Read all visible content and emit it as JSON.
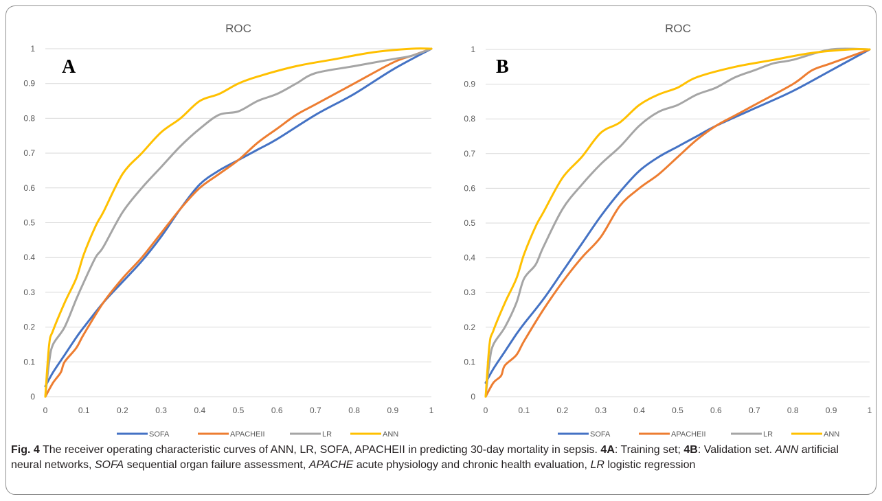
{
  "charts_meta": {
    "axis_color": "#d9d9d9",
    "grid_color": "#d9d9d9",
    "tick_color": "#595959"
  },
  "chart_data": [
    {
      "type": "line",
      "title": "ROC",
      "panel_label": "A",
      "xlabel": "",
      "ylabel": "",
      "xlim": [
        0,
        1
      ],
      "ylim": [
        0,
        1
      ],
      "xticks": [
        "0",
        "0.1",
        "0.2",
        "0.3",
        "0.4",
        "0.5",
        "0.6",
        "0.7",
        "0.8",
        "0.9",
        "1"
      ],
      "yticks": [
        "0",
        "0.1",
        "0.2",
        "0.3",
        "0.4",
        "0.5",
        "0.6",
        "0.7",
        "0.8",
        "0.9",
        "1"
      ],
      "grid": "horizontal",
      "legend_position": "bottom",
      "series": [
        {
          "name": "SOFA",
          "color": "#4472c4",
          "x": [
            0,
            0.02,
            0.05,
            0.08,
            0.1,
            0.15,
            0.2,
            0.25,
            0.3,
            0.35,
            0.4,
            0.45,
            0.5,
            0.55,
            0.6,
            0.7,
            0.8,
            0.9,
            1.0
          ],
          "y": [
            0.03,
            0.07,
            0.12,
            0.17,
            0.2,
            0.27,
            0.33,
            0.39,
            0.46,
            0.54,
            0.61,
            0.65,
            0.68,
            0.71,
            0.74,
            0.81,
            0.87,
            0.94,
            1.0
          ]
        },
        {
          "name": "APACHEII",
          "color": "#ed7d31",
          "x": [
            0,
            0.02,
            0.04,
            0.05,
            0.08,
            0.1,
            0.15,
            0.2,
            0.25,
            0.3,
            0.35,
            0.4,
            0.45,
            0.5,
            0.55,
            0.6,
            0.65,
            0.7,
            0.8,
            0.9,
            0.95,
            1.0
          ],
          "y": [
            0,
            0.04,
            0.07,
            0.1,
            0.14,
            0.18,
            0.27,
            0.34,
            0.4,
            0.47,
            0.54,
            0.6,
            0.64,
            0.68,
            0.73,
            0.77,
            0.81,
            0.84,
            0.9,
            0.96,
            0.98,
            1.0
          ]
        },
        {
          "name": "LR",
          "color": "#a5a5a5",
          "x": [
            0,
            0.01,
            0.02,
            0.05,
            0.08,
            0.1,
            0.13,
            0.15,
            0.2,
            0.25,
            0.3,
            0.35,
            0.4,
            0.45,
            0.5,
            0.55,
            0.6,
            0.65,
            0.7,
            0.8,
            0.9,
            0.95,
            1.0
          ],
          "y": [
            0,
            0.1,
            0.15,
            0.2,
            0.28,
            0.33,
            0.4,
            0.43,
            0.53,
            0.6,
            0.66,
            0.72,
            0.77,
            0.81,
            0.82,
            0.85,
            0.87,
            0.9,
            0.93,
            0.95,
            0.97,
            0.98,
            1.0
          ]
        },
        {
          "name": "ANN",
          "color": "#ffc000",
          "x": [
            0,
            0.01,
            0.02,
            0.05,
            0.08,
            0.1,
            0.13,
            0.15,
            0.2,
            0.25,
            0.3,
            0.35,
            0.4,
            0.45,
            0.5,
            0.55,
            0.65,
            0.75,
            0.85,
            0.95,
            1.0
          ],
          "y": [
            0,
            0.15,
            0.19,
            0.27,
            0.34,
            0.41,
            0.49,
            0.53,
            0.64,
            0.7,
            0.76,
            0.8,
            0.85,
            0.87,
            0.9,
            0.92,
            0.95,
            0.97,
            0.99,
            1.0,
            1.0
          ]
        }
      ]
    },
    {
      "type": "line",
      "title": "ROC",
      "panel_label": "B",
      "xlabel": "",
      "ylabel": "",
      "xlim": [
        0,
        1
      ],
      "ylim": [
        0,
        1
      ],
      "xticks": [
        "0",
        "0.1",
        "0.2",
        "0.3",
        "0.4",
        "0.5",
        "0.6",
        "0.7",
        "0.8",
        "0.9",
        "1"
      ],
      "yticks": [
        "0",
        "0.1",
        "0.2",
        "0.3",
        "0.4",
        "0.5",
        "0.6",
        "0.7",
        "0.8",
        "0.9",
        "1"
      ],
      "grid": "horizontal",
      "legend_position": "bottom",
      "series": [
        {
          "name": "SOFA",
          "color": "#4472c4",
          "x": [
            0,
            0.02,
            0.05,
            0.08,
            0.1,
            0.15,
            0.2,
            0.25,
            0.3,
            0.35,
            0.4,
            0.45,
            0.5,
            0.55,
            0.6,
            0.7,
            0.8,
            0.9,
            1.0
          ],
          "y": [
            0.04,
            0.08,
            0.13,
            0.18,
            0.21,
            0.28,
            0.36,
            0.44,
            0.52,
            0.59,
            0.65,
            0.69,
            0.72,
            0.75,
            0.78,
            0.83,
            0.88,
            0.94,
            1.0
          ]
        },
        {
          "name": "APACHEII",
          "color": "#ed7d31",
          "x": [
            0,
            0.02,
            0.04,
            0.05,
            0.08,
            0.1,
            0.15,
            0.2,
            0.25,
            0.3,
            0.35,
            0.4,
            0.45,
            0.5,
            0.55,
            0.6,
            0.65,
            0.7,
            0.8,
            0.85,
            0.9,
            1.0
          ],
          "y": [
            0,
            0.04,
            0.06,
            0.09,
            0.12,
            0.16,
            0.25,
            0.33,
            0.4,
            0.46,
            0.55,
            0.6,
            0.64,
            0.69,
            0.74,
            0.78,
            0.81,
            0.84,
            0.9,
            0.94,
            0.96,
            1.0
          ]
        },
        {
          "name": "LR",
          "color": "#a5a5a5",
          "x": [
            0,
            0.01,
            0.02,
            0.05,
            0.08,
            0.1,
            0.13,
            0.15,
            0.2,
            0.25,
            0.3,
            0.35,
            0.4,
            0.45,
            0.5,
            0.55,
            0.6,
            0.65,
            0.7,
            0.75,
            0.8,
            0.9,
            1.0
          ],
          "y": [
            0,
            0.1,
            0.15,
            0.2,
            0.27,
            0.34,
            0.38,
            0.43,
            0.54,
            0.61,
            0.67,
            0.72,
            0.78,
            0.82,
            0.84,
            0.87,
            0.89,
            0.92,
            0.94,
            0.96,
            0.97,
            1.0,
            1.0
          ]
        },
        {
          "name": "ANN",
          "color": "#ffc000",
          "x": [
            0,
            0.01,
            0.02,
            0.05,
            0.08,
            0.1,
            0.13,
            0.15,
            0.2,
            0.25,
            0.3,
            0.35,
            0.4,
            0.45,
            0.5,
            0.55,
            0.65,
            0.75,
            0.85,
            0.95,
            1.0
          ],
          "y": [
            0,
            0.15,
            0.19,
            0.27,
            0.34,
            0.41,
            0.49,
            0.53,
            0.63,
            0.69,
            0.76,
            0.79,
            0.84,
            0.87,
            0.89,
            0.92,
            0.95,
            0.97,
            0.99,
            1.0,
            1.0
          ]
        }
      ]
    }
  ],
  "caption": {
    "fig_label": "Fig. 4",
    "text_1": "  The receiver operating characteristic curves of ANN, LR, SOFA, APACHEII in predicting 30-day mortality in sepsis. ",
    "ref_4a": "4A",
    "text_2": ": Training set; ",
    "ref_4b": "4B",
    "text_3": ": Validation set. ",
    "abbr_ann": "ANN",
    "def_ann": " artificial neural networks, ",
    "abbr_sofa": "SOFA",
    "def_sofa": " sequential organ failure assessment, ",
    "abbr_apache": "APACHE",
    "def_apache": " acute physiology and chronic health evaluation, ",
    "abbr_lr": "LR",
    "def_lr": " logistic regression"
  }
}
